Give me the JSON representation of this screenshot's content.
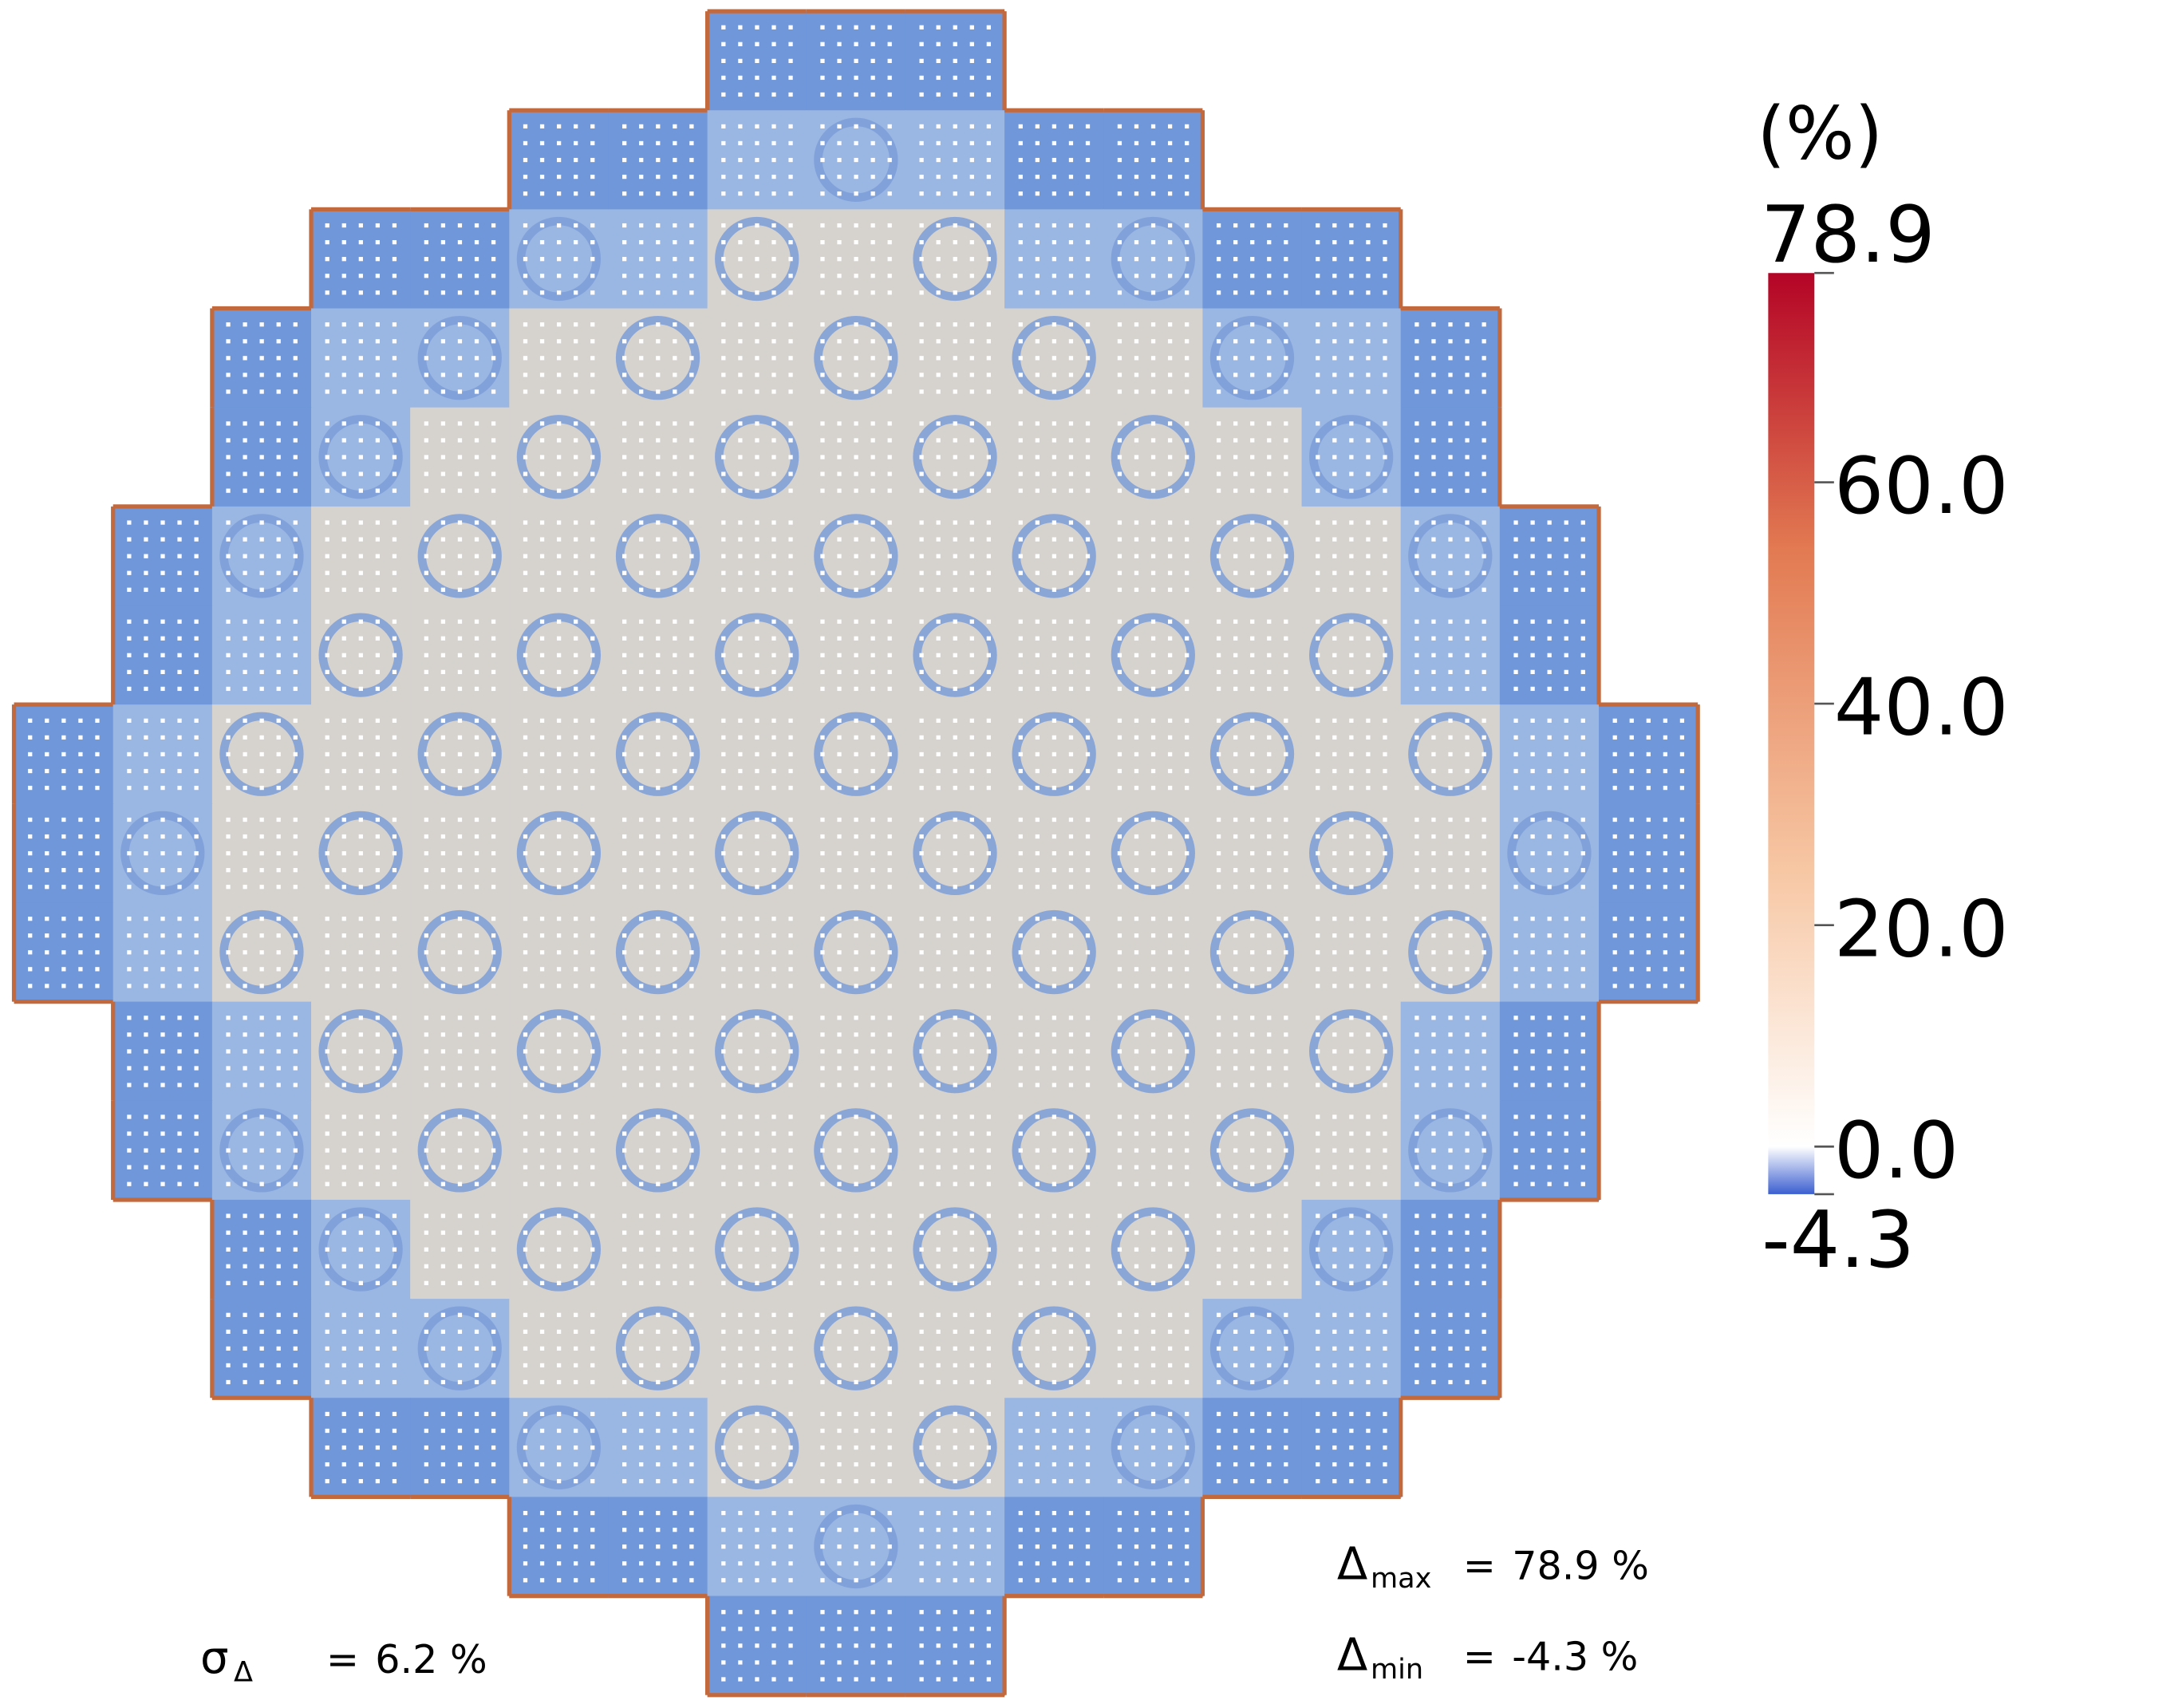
{
  "chart_data": {
    "type": "heatmap",
    "colorbar": {
      "unit": "(%)",
      "lim": [
        -4.3,
        78.9
      ],
      "ticks": [
        78.9,
        {
          "value": 60,
          "label": "60.0"
        },
        {
          "value": 40,
          "label": "40.0"
        },
        {
          "value": 20,
          "label": "20.0"
        },
        {
          "value": 0,
          "label": "0.0"
        },
        -4.3
      ]
    },
    "annotations": [
      {
        "symbol": "Δ",
        "subscript": "max",
        "relation": "=",
        "value": "78.9 %"
      },
      {
        "symbol": "Δ",
        "subscript": "min",
        "relation": "=",
        "value": "-4.3 %"
      },
      {
        "symbol": "σ",
        "subscript": "Δ",
        "relation": "=",
        "value": "6.2 %"
      }
    ]
  }
}
